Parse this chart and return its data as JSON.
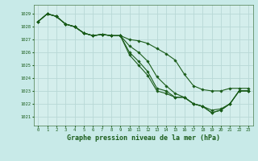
{
  "background_color": "#c8eae8",
  "plot_bg_color": "#d4eeec",
  "grid_color": "#b8d8d6",
  "line_color": "#1a5c1a",
  "marker_color": "#1a5c1a",
  "xlabel": "Graphe pression niveau de la mer (hPa)",
  "xlabel_fontsize": 6.0,
  "ylabel_ticks": [
    1021,
    1022,
    1023,
    1024,
    1025,
    1026,
    1027,
    1028,
    1029
  ],
  "xlim": [
    -0.5,
    23.5
  ],
  "ylim": [
    1020.3,
    1029.7
  ],
  "xticks": [
    0,
    1,
    2,
    3,
    4,
    5,
    6,
    7,
    8,
    9,
    10,
    11,
    12,
    13,
    14,
    15,
    16,
    17,
    18,
    19,
    20,
    21,
    22,
    23
  ],
  "series": [
    [
      1028.4,
      1029.0,
      1028.8,
      1028.2,
      1028.0,
      1027.5,
      1027.3,
      1027.4,
      1027.3,
      1027.3,
      1027.0,
      1026.9,
      1026.7,
      1026.3,
      1025.9,
      1025.4,
      1024.3,
      1023.4,
      1023.1,
      1023.0,
      1023.0,
      1023.2,
      1023.2,
      1023.2
    ],
    [
      1028.4,
      1029.0,
      1028.8,
      1028.2,
      1028.0,
      1027.5,
      1027.3,
      1027.4,
      1027.3,
      1027.3,
      1026.5,
      1026.0,
      1025.3,
      1024.1,
      1023.4,
      1022.8,
      1022.5,
      1022.0,
      1021.8,
      1021.5,
      1021.6,
      1022.0,
      1023.0,
      1023.0
    ],
    [
      1028.4,
      1029.0,
      1028.8,
      1028.2,
      1028.0,
      1027.5,
      1027.3,
      1027.4,
      1027.3,
      1027.3,
      1026.0,
      1025.3,
      1024.5,
      1023.2,
      1023.0,
      1022.5,
      1022.5,
      1022.0,
      1021.8,
      1021.3,
      1021.5,
      1022.0,
      1023.0,
      1023.0
    ],
    [
      1028.4,
      1029.0,
      1028.8,
      1028.2,
      1028.0,
      1027.5,
      1027.3,
      1027.4,
      1027.3,
      1027.3,
      1025.8,
      1025.0,
      1024.2,
      1023.0,
      1022.8,
      1022.5,
      1022.5,
      1022.0,
      1021.8,
      1021.3,
      1021.5,
      1022.0,
      1023.0,
      1023.0
    ]
  ]
}
